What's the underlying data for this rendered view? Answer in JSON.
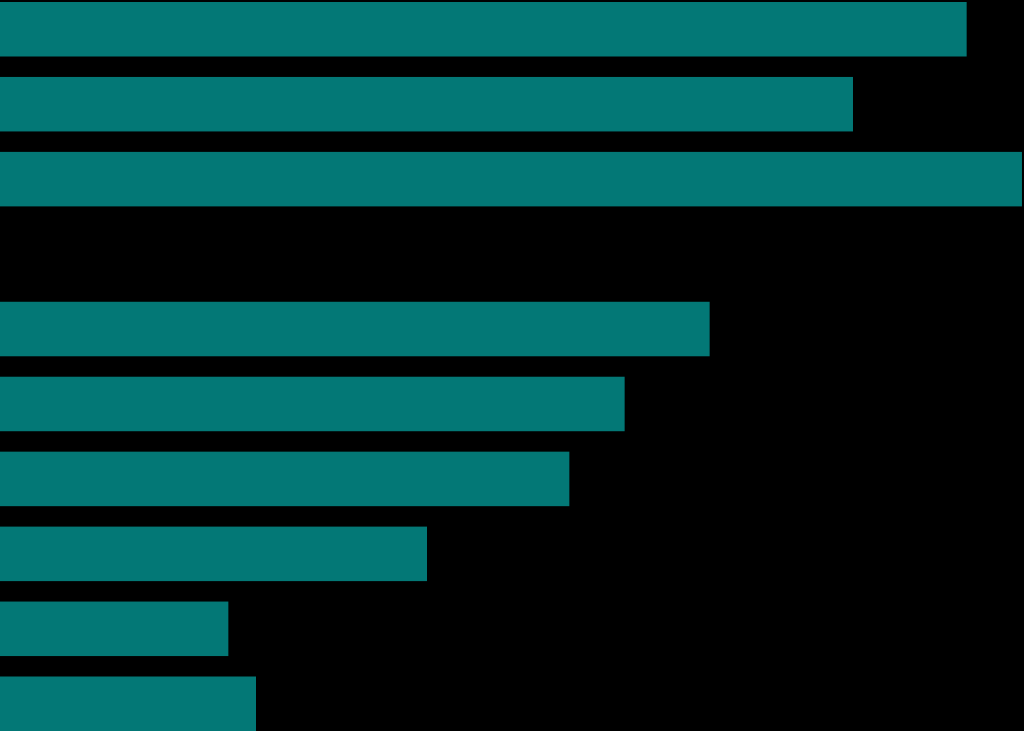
{
  "chart_data": {
    "type": "bar",
    "orientation": "horizontal",
    "categories": [
      null,
      null,
      null,
      null,
      null,
      null,
      null,
      null,
      null,
      null
    ],
    "values": [
      94.4,
      83.3,
      99.8,
      null,
      69.3,
      61.0,
      55.6,
      41.7,
      22.3,
      25.0
    ],
    "color": "#037876",
    "xlim": [
      0,
      100
    ],
    "tick_labels": false
  }
}
